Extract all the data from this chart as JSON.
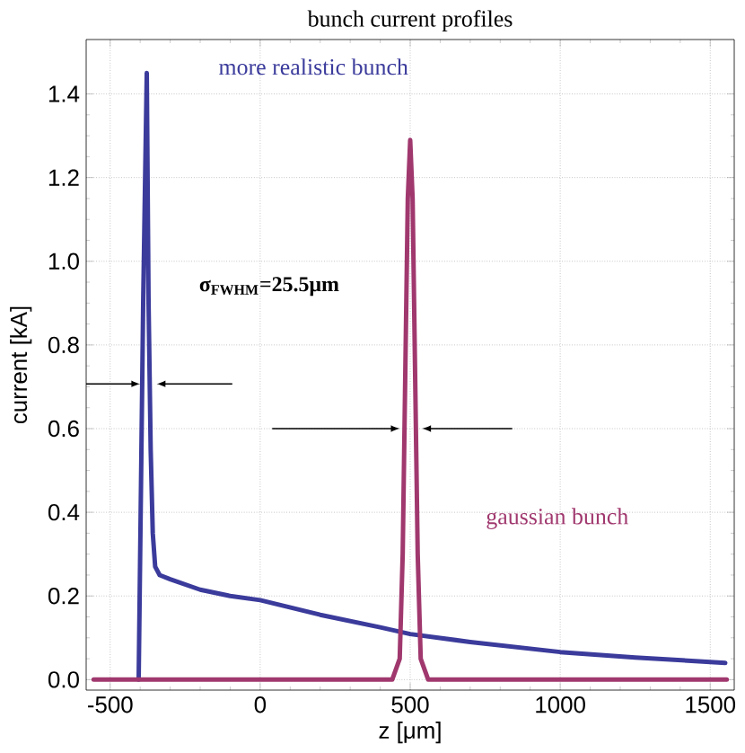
{
  "chart_data": {
    "type": "line",
    "title": "bunch current profiles",
    "xlabel": "z [μm]",
    "ylabel": "current [kA]",
    "x": [
      -405,
      -390,
      -378,
      -372,
      -365,
      -358,
      -350,
      -335,
      -300,
      -200,
      -100,
      0,
      200,
      400,
      500,
      700,
      1000,
      1250,
      1550
    ],
    "series": [
      {
        "name": "more realistic bunch",
        "color": "#3b3b9c",
        "values": [
          0,
          0.9,
          1.45,
          0.9,
          0.55,
          0.35,
          0.27,
          0.25,
          0.24,
          0.215,
          0.2,
          0.19,
          0.155,
          0.125,
          0.109,
          0.09,
          0.066,
          0.053,
          0.04
        ]
      },
      {
        "name": "gaussian bunch",
        "color": "#a0386e",
        "x": [
          -555,
          440,
          465,
          475,
          485,
          492,
          500,
          508,
          515,
          525,
          535,
          560,
          1555
        ],
        "values": [
          0,
          0,
          0.05,
          0.3,
          0.8,
          1.15,
          1.29,
          1.15,
          0.8,
          0.3,
          0.05,
          0,
          0
        ]
      }
    ],
    "annotations": [
      "σ$_{FWHM}$=25.5μm"
    ],
    "xlim": [
      -580,
      1580
    ],
    "ylim": [
      -0.025,
      1.53
    ],
    "xticks": [
      -500,
      0,
      500,
      1000,
      1500
    ],
    "yticks": [
      {
        "value": 0,
        "label": "0.0"
      },
      {
        "value": 0.2,
        "label": "0.2"
      },
      {
        "value": 0.4,
        "label": "0.4"
      },
      {
        "value": 0.6,
        "label": "0.6"
      },
      {
        "value": 0.8,
        "label": "0.8"
      },
      {
        "value": 1.0,
        "label": "1.0"
      },
      {
        "value": 1.2,
        "label": "1.2"
      },
      {
        "value": 1.4,
        "label": "1.4"
      }
    ],
    "grid": true,
    "legend": false,
    "marker": "none",
    "line_style": "solid"
  }
}
